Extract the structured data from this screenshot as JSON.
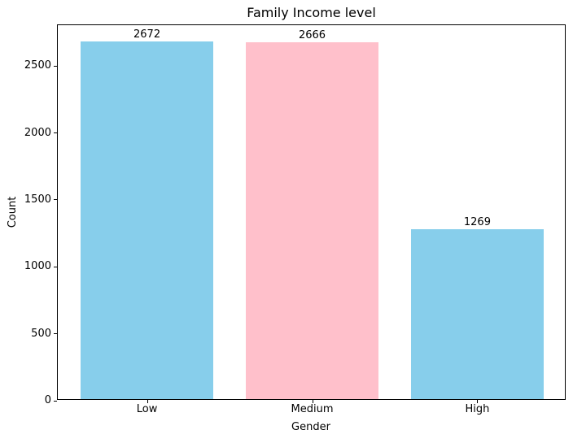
{
  "chart_data": {
    "type": "bar",
    "title": "Family Income level",
    "xlabel": "Gender",
    "ylabel": "Count",
    "categories": [
      "Low",
      "Medium",
      "High"
    ],
    "values": [
      2672,
      2666,
      1269
    ],
    "bar_colors": [
      "#87CEEB",
      "#FFC0CB",
      "#87CEEB"
    ],
    "value_labels": [
      "2672",
      "2666",
      "1269"
    ],
    "yticks": [
      0,
      500,
      1000,
      1500,
      2000,
      2500
    ],
    "ylim": [
      0,
      2805.6
    ],
    "grid": false,
    "legend_position": "none",
    "text_color": "#000000",
    "background_color": "#ffffff"
  }
}
